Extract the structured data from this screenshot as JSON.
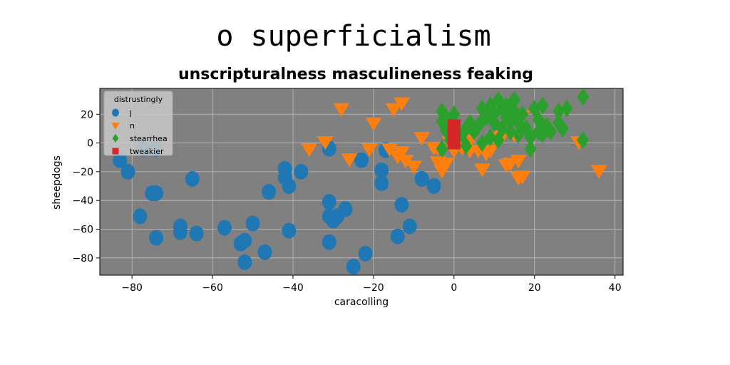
{
  "chart_data": {
    "type": "scatter",
    "suptitle": "o superficialism",
    "title": "unscripturalness masculineness feaking",
    "xlabel": "caracolling",
    "ylabel": "sheepdogs",
    "xlim": [
      -88,
      42
    ],
    "ylim": [
      -92,
      38
    ],
    "xticks": [
      -80,
      -60,
      -40,
      -20,
      0,
      20,
      40
    ],
    "yticks": [
      -80,
      -60,
      -40,
      -20,
      0,
      20
    ],
    "grid": true,
    "background": "#808080",
    "legend": {
      "title": "distrustingly",
      "placement": "upper-left"
    },
    "series": [
      {
        "name": "j",
        "marker": "circle",
        "color": "#1f77b4",
        "points": [
          [
            -83,
            -12
          ],
          [
            -81,
            -20
          ],
          [
            -77,
            -4
          ],
          [
            -74,
            -4
          ],
          [
            -75,
            -35
          ],
          [
            -74,
            -35
          ],
          [
            -65,
            -25
          ],
          [
            -78,
            -51
          ],
          [
            -74,
            -66
          ],
          [
            -68,
            -58
          ],
          [
            -68,
            -62
          ],
          [
            -64,
            -63
          ],
          [
            -57,
            -59
          ],
          [
            -53,
            -70
          ],
          [
            -52,
            -68
          ],
          [
            -52,
            -83
          ],
          [
            -50,
            -56
          ],
          [
            -47,
            -76
          ],
          [
            -46,
            -34
          ],
          [
            -42,
            -18
          ],
          [
            -42,
            -24
          ],
          [
            -41,
            -30
          ],
          [
            -41,
            -61
          ],
          [
            -38,
            -20
          ],
          [
            -31,
            -4
          ],
          [
            -31,
            -41
          ],
          [
            -31,
            -51
          ],
          [
            -31,
            -69
          ],
          [
            -30,
            -54
          ],
          [
            -29,
            -51
          ],
          [
            -27,
            -46
          ],
          [
            -25,
            -86
          ],
          [
            -23,
            -12
          ],
          [
            -22,
            -77
          ],
          [
            -18,
            -28
          ],
          [
            -18,
            -19
          ],
          [
            -17,
            -5
          ],
          [
            -14,
            -65
          ],
          [
            -13,
            -43
          ],
          [
            -11,
            -58
          ],
          [
            -8,
            -25
          ],
          [
            -5,
            -30
          ]
        ]
      },
      {
        "name": "n",
        "marker": "triangle-down",
        "color": "#ff7f0e",
        "points": [
          [
            -36,
            -4
          ],
          [
            -32,
            1
          ],
          [
            -28,
            24
          ],
          [
            -26,
            -11
          ],
          [
            -21,
            -4
          ],
          [
            -20,
            14
          ],
          [
            -16,
            -4
          ],
          [
            -15,
            24
          ],
          [
            -14,
            -9
          ],
          [
            -13,
            -6
          ],
          [
            -13,
            28
          ],
          [
            -12,
            -12
          ],
          [
            -10,
            -16
          ],
          [
            -8,
            4
          ],
          [
            -5,
            -3
          ],
          [
            -4,
            -13
          ],
          [
            -3,
            -19
          ],
          [
            -2,
            -14
          ],
          [
            0,
            -5
          ],
          [
            2,
            -3
          ],
          [
            4,
            -5
          ],
          [
            4,
            2
          ],
          [
            6,
            -5
          ],
          [
            7,
            -18
          ],
          [
            8,
            -7
          ],
          [
            9,
            -5
          ],
          [
            10,
            4
          ],
          [
            12,
            5
          ],
          [
            13,
            -15
          ],
          [
            14,
            -14
          ],
          [
            15,
            6
          ],
          [
            16,
            -24
          ],
          [
            16,
            -12
          ],
          [
            17,
            -23
          ],
          [
            17,
            19
          ],
          [
            31,
            1
          ],
          [
            36,
            -19
          ],
          [
            2,
            4
          ],
          [
            -1,
            1
          ],
          [
            -4,
            -3
          ]
        ]
      },
      {
        "name": "stearrhea",
        "marker": "diamond",
        "color": "#2ca02c",
        "points": [
          [
            -3,
            22
          ],
          [
            -3,
            15
          ],
          [
            -2,
            18
          ],
          [
            -2,
            9
          ],
          [
            -1,
            2
          ],
          [
            0,
            12
          ],
          [
            0,
            20
          ],
          [
            2,
            6
          ],
          [
            3,
            10
          ],
          [
            4,
            14
          ],
          [
            5,
            8
          ],
          [
            6,
            12
          ],
          [
            7,
            24
          ],
          [
            7,
            16
          ],
          [
            7,
            0
          ],
          [
            8,
            18
          ],
          [
            9,
            26
          ],
          [
            9,
            4
          ],
          [
            10,
            20
          ],
          [
            10,
            14
          ],
          [
            11,
            30
          ],
          [
            11,
            2
          ],
          [
            12,
            24
          ],
          [
            12,
            10
          ],
          [
            13,
            18
          ],
          [
            13,
            26
          ],
          [
            14,
            8
          ],
          [
            14,
            16
          ],
          [
            15,
            30
          ],
          [
            15,
            22
          ],
          [
            16,
            14
          ],
          [
            16,
            6
          ],
          [
            17,
            20
          ],
          [
            18,
            10
          ],
          [
            19,
            4
          ],
          [
            19,
            -4
          ],
          [
            20,
            24
          ],
          [
            21,
            16
          ],
          [
            21,
            8
          ],
          [
            22,
            26
          ],
          [
            22,
            6
          ],
          [
            23,
            12
          ],
          [
            24,
            8
          ],
          [
            26,
            22
          ],
          [
            26,
            14
          ],
          [
            27,
            10
          ],
          [
            28,
            24
          ],
          [
            32,
            32
          ],
          [
            32,
            2
          ],
          [
            -3,
            -4
          ],
          [
            3,
            -2
          ]
        ]
      },
      {
        "name": "tweakier",
        "marker": "square",
        "color": "#d62728",
        "points": [
          [
            0,
            12
          ],
          [
            0,
            8
          ],
          [
            0,
            4
          ],
          [
            0,
            0
          ]
        ]
      }
    ]
  }
}
